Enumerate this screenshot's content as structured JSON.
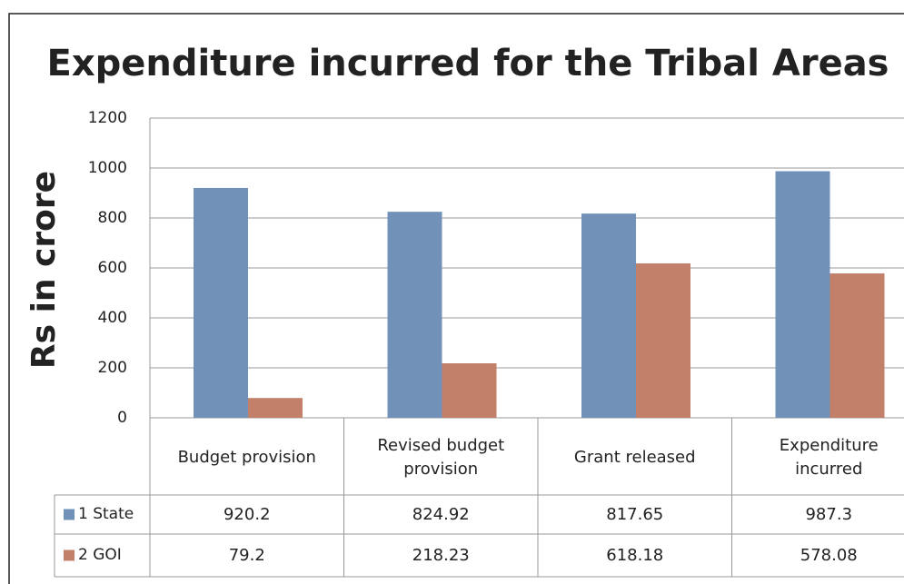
{
  "chart_data": {
    "type": "bar",
    "title": "Expenditure incurred for the Tribal Areas",
    "y_label": "Rs in crore",
    "categories": [
      "Budget provision",
      "Revised budget provision",
      "Grant released",
      "Expenditure incurred"
    ],
    "series": [
      {
        "name": "1 State",
        "color": "#7191b9",
        "values": [
          920.2,
          824.92,
          817.65,
          987.3
        ]
      },
      {
        "name": "2 GOI",
        "color": "#c2806a",
        "values": [
          79.2,
          218.23,
          618.18,
          578.08
        ]
      }
    ],
    "ylim": [
      0,
      1200
    ],
    "yticks": [
      0,
      200,
      400,
      600,
      800,
      1000,
      1200
    ],
    "grid": true
  }
}
